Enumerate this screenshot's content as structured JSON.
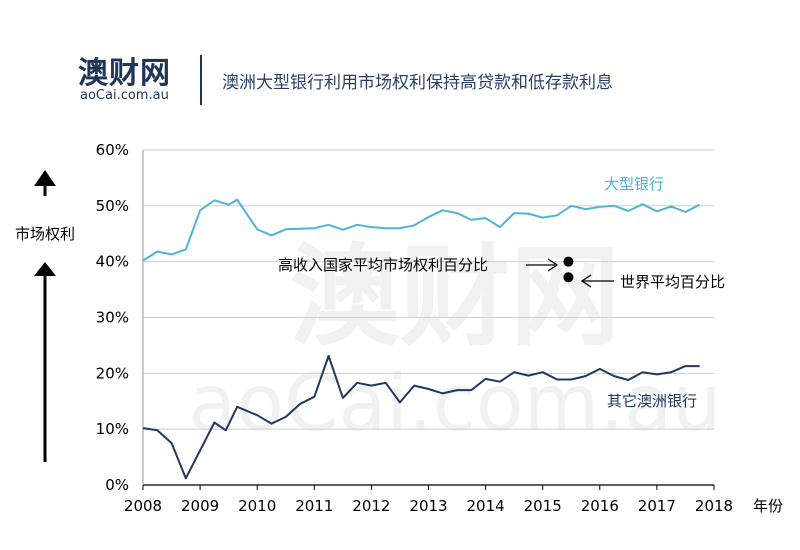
{
  "logo": {
    "name_cn": "澳财网",
    "name_en": "aoCai.com.au"
  },
  "headline": "澳洲大型银行利用市场权利保持高贷款和低存款利息",
  "watermark": {
    "cn": "澳财网",
    "en": "aoCai.com.au"
  },
  "colors": {
    "big_banks": "#4fb3d9",
    "other_banks": "#1f3864",
    "axis": "#000000",
    "grid": "#cfcfcf"
  },
  "chart_data": {
    "type": "line",
    "title": "澳洲大型银行利用市场权利保持高贷款和低存款利息",
    "ylabel": "市场权利",
    "xlabel": "年份",
    "ylim": [
      0,
      60
    ],
    "xlim": [
      2008,
      2018
    ],
    "y_ticks": [
      "0%",
      "10%",
      "20%",
      "30%",
      "40%",
      "50%",
      "60%"
    ],
    "x_ticks": [
      "2008",
      "2009",
      "2010",
      "2011",
      "2012",
      "2013",
      "2014",
      "2015",
      "2016",
      "2017",
      "2018"
    ],
    "grid": "horizontal",
    "series": [
      {
        "name": "大型银行",
        "x": [
          2008.0,
          2008.25,
          2008.5,
          2008.75,
          2009.0,
          2009.25,
          2009.5,
          2009.65,
          2010.0,
          2010.25,
          2010.5,
          2010.75,
          2011.0,
          2011.25,
          2011.5,
          2011.75,
          2012.0,
          2012.25,
          2012.5,
          2012.75,
          2013.0,
          2013.25,
          2013.5,
          2013.75,
          2014.0,
          2014.25,
          2014.5,
          2014.75,
          2015.0,
          2015.25,
          2015.5,
          2015.75,
          2016.0,
          2016.25,
          2016.5,
          2016.75,
          2017.0,
          2017.25,
          2017.5,
          2017.75
        ],
        "y": [
          40.2,
          41.8,
          41.3,
          42.2,
          49.2,
          51.0,
          50.2,
          51.1,
          45.8,
          44.7,
          45.8,
          45.9,
          46.0,
          46.6,
          45.7,
          46.6,
          46.2,
          46.0,
          46.0,
          46.5,
          48.0,
          49.2,
          48.7,
          47.5,
          47.8,
          46.2,
          48.7,
          48.6,
          47.9,
          48.3,
          50.0,
          49.4,
          49.8,
          50.0,
          49.1,
          50.3,
          49.0,
          49.9,
          48.9,
          50.2
        ]
      },
      {
        "name": "其它澳洲银行",
        "x": [
          2008.0,
          2008.25,
          2008.5,
          2008.75,
          2009.0,
          2009.25,
          2009.45,
          2009.65,
          2010.0,
          2010.25,
          2010.5,
          2010.75,
          2011.0,
          2011.25,
          2011.5,
          2011.75,
          2012.0,
          2012.25,
          2012.5,
          2012.75,
          2013.0,
          2013.25,
          2013.5,
          2013.75,
          2014.0,
          2014.25,
          2014.5,
          2014.75,
          2015.0,
          2015.25,
          2015.5,
          2015.75,
          2016.0,
          2016.25,
          2016.5,
          2016.75,
          2017.0,
          2017.25,
          2017.5,
          2017.75
        ],
        "y": [
          10.2,
          9.8,
          7.5,
          1.2,
          6.2,
          11.2,
          9.8,
          14.0,
          12.5,
          11.0,
          12.2,
          14.5,
          15.8,
          23.1,
          15.6,
          18.3,
          17.8,
          18.3,
          14.8,
          17.8,
          17.2,
          16.4,
          17.0,
          17.0,
          19.0,
          18.5,
          20.2,
          19.6,
          20.2,
          18.9,
          18.9,
          19.5,
          20.8,
          19.5,
          18.8,
          20.2,
          19.8,
          20.2,
          21.3,
          21.3
        ]
      }
    ],
    "points": [
      {
        "label": "高收入国家平均市场权利百分比",
        "x": 2015.45,
        "y": 40.0
      },
      {
        "label": "世界平均百分比",
        "x": 2015.45,
        "y": 37.2
      }
    ]
  }
}
